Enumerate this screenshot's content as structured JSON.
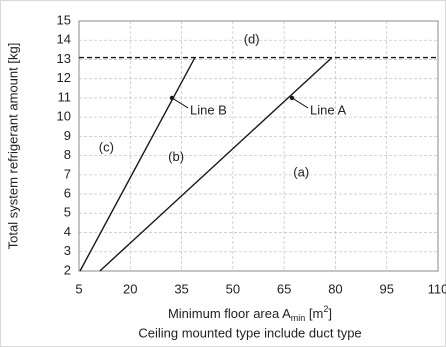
{
  "chart_data": {
    "type": "line",
    "ylabel": "Total system refrigerant amount [kg]",
    "xlabel": {
      "text": "Minimum floor area A",
      "sub": "min",
      "mid": " [m",
      "sup": "2",
      "end": "]"
    },
    "subtitle": "Ceiling mounted type include duct type",
    "xlim": [
      5,
      110
    ],
    "ylim": [
      2,
      15
    ],
    "xticks": [
      5,
      20,
      35,
      50,
      65,
      80,
      95,
      110
    ],
    "yticks": [
      2,
      3,
      4,
      5,
      6,
      7,
      8,
      9,
      10,
      11,
      12,
      13,
      14,
      15
    ],
    "grid": true,
    "series": [
      {
        "name": "Line A",
        "color": "#1a1a1a",
        "x": [
          11.1,
          79
        ],
        "values": [
          2,
          13.1
        ],
        "marker": {
          "x": 67.3,
          "y": 11
        }
      },
      {
        "name": "Line B",
        "color": "#1a1a1a",
        "x": [
          5.3,
          38.9
        ],
        "values": [
          2,
          13.1
        ],
        "marker": {
          "x": 32.2,
          "y": 11
        }
      }
    ],
    "hline": {
      "value": 13.1,
      "color": "#1a1a1a",
      "style": "dashed"
    },
    "annotations": [
      {
        "text": "(d)",
        "x": 55.5,
        "y": 14
      },
      {
        "text": "(c)",
        "x": 13,
        "y": 8.4
      },
      {
        "text": "(b)",
        "x": 33.4,
        "y": 7.9
      },
      {
        "text": "(a)",
        "x": 70,
        "y": 7.1
      }
    ]
  }
}
